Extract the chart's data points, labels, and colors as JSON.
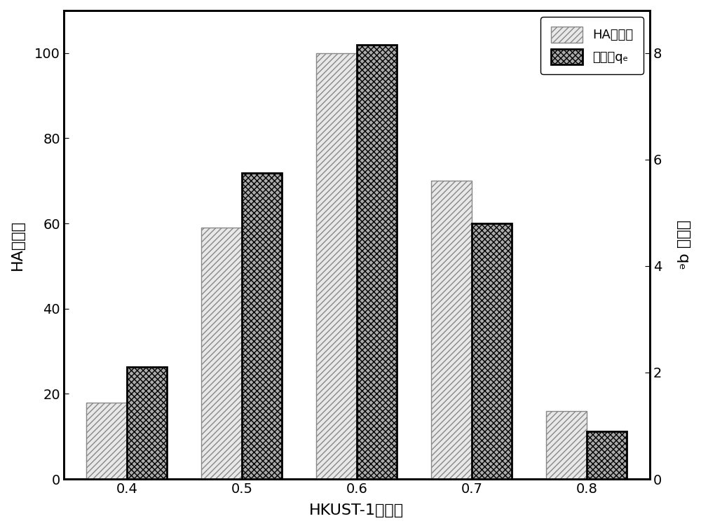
{
  "categories": [
    "0.4",
    "0.5",
    "0.6",
    "0.7",
    "0.8"
  ],
  "ha_removal": [
    18,
    59,
    100,
    70,
    16
  ],
  "adsorption": [
    2.1,
    5.75,
    8.15,
    4.8,
    0.9
  ],
  "xlabel": "HKUST-1投加量",
  "ylabel_left": "HA去除率",
  "ylabel_right": "吸附量 qₑ",
  "legend_label1": "HA去除率",
  "legend_label2": "吸附量qₑ",
  "ylim_left": [
    0,
    110
  ],
  "ylim_right": [
    0,
    8.8
  ],
  "yticks_left": [
    0,
    20,
    40,
    60,
    80,
    100
  ],
  "yticks_right": [
    0,
    2,
    4,
    6,
    8
  ],
  "bar_width": 0.35,
  "ha_color": "#e8e8e8",
  "ha_edgecolor": "#888888",
  "ads_color": "#aaaaaa",
  "ads_edgecolor": "#000000",
  "background_color": "#ffffff",
  "label_fontsize": 16,
  "tick_fontsize": 14,
  "legend_fontsize": 13
}
